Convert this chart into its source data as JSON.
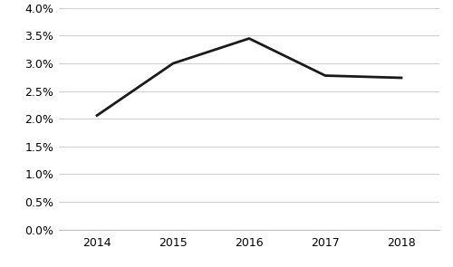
{
  "years": [
    2014,
    2015,
    2016,
    2017,
    2018
  ],
  "values": [
    0.0206,
    0.03,
    0.0345,
    0.0278,
    0.0274
  ],
  "line_color": "#1a1a1a",
  "line_width": 2.0,
  "ylim": [
    0.0,
    0.04
  ],
  "yticks": [
    0.0,
    0.005,
    0.01,
    0.015,
    0.02,
    0.025,
    0.03,
    0.035,
    0.04
  ],
  "ytick_labels": [
    "0.0%",
    "0.5%",
    "1.0%",
    "1.5%",
    "2.0%",
    "2.5%",
    "3.0%",
    "3.5%",
    "4.0%"
  ],
  "xticks": [
    2014,
    2015,
    2016,
    2017,
    2018
  ],
  "background_color": "#ffffff",
  "grid_color": "#d0d0d0"
}
